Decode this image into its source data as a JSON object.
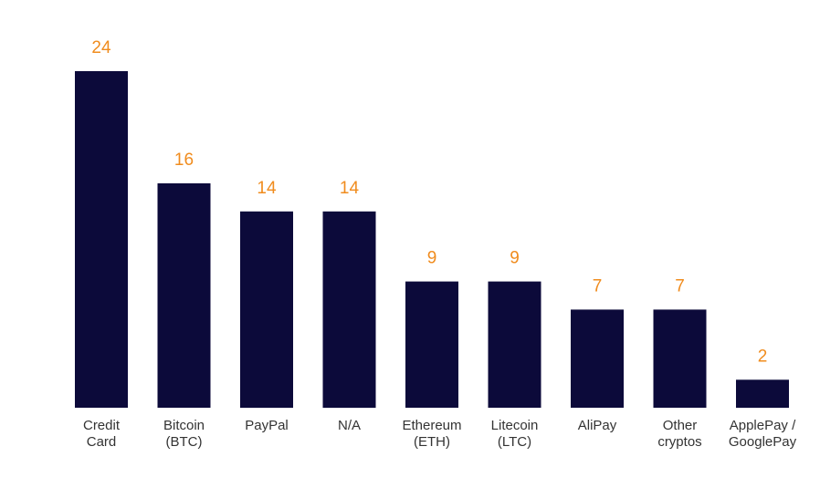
{
  "chart_data": {
    "type": "bar",
    "title": "",
    "xlabel": "",
    "ylabel": "",
    "categories": [
      [
        "Credit",
        "Card"
      ],
      [
        "Bitcoin",
        "(BTC)"
      ],
      [
        "PayPal"
      ],
      [
        "N/A"
      ],
      [
        "Ethereum",
        "(ETH)"
      ],
      [
        "Litecoin",
        "(LTC)"
      ],
      [
        "AliPay"
      ],
      [
        "Other",
        "cryptos"
      ],
      [
        "ApplePay /",
        "GooglePay"
      ]
    ],
    "values": [
      24,
      16,
      14,
      14,
      9,
      9,
      7,
      7,
      2
    ],
    "ylim": [
      0,
      24
    ],
    "grid": false,
    "data_labels": true
  },
  "colors": {
    "bar": "#0c0a3a",
    "value_label": "#f08c1e",
    "category_label": "#333333",
    "background": "#ffffff"
  }
}
